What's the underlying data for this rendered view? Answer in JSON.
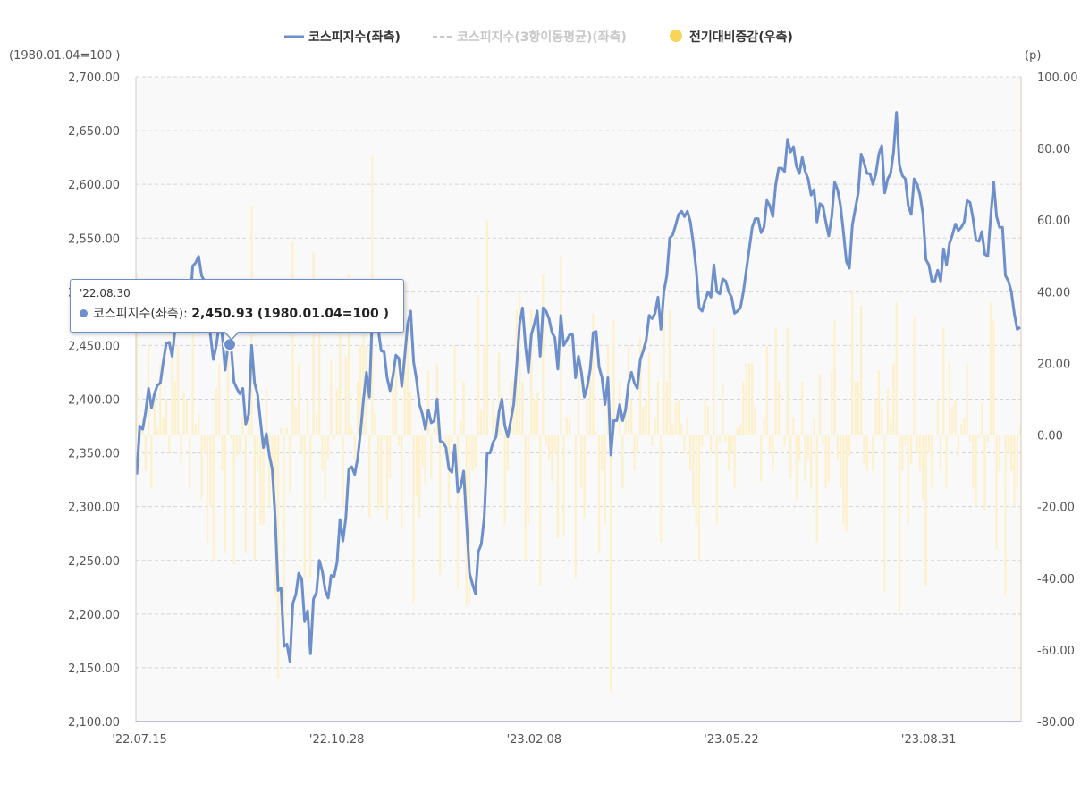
{
  "chart_data": {
    "type": "line",
    "left_unit": "(1980.01.04=100 )",
    "right_unit": "(p)",
    "legend": [
      {
        "name": "코스피지수(좌측)",
        "color": "#6d8fcc",
        "style": "line"
      },
      {
        "name": "코스피지수(3항이동평균)(좌측)",
        "color": "#c8c8c8",
        "style": "dashed"
      },
      {
        "name": "전기대비증감(우측)",
        "color": "#f8d45a",
        "style": "circle"
      }
    ],
    "left_axis": {
      "min": 2100,
      "max": 2700,
      "ticks": [
        "2,100.00",
        "2,150.00",
        "2,200.00",
        "2,250.00",
        "2,300.00",
        "2,350.00",
        "2,400.00",
        "2,450.00",
        "2,500.00",
        "2,550.00",
        "2,600.00",
        "2,650.00",
        "2,700.00"
      ]
    },
    "right_axis": {
      "min": -80,
      "max": 100,
      "ticks": [
        "-80.00",
        "-60.00",
        "-40.00",
        "-20.00",
        "0.00",
        "20.00",
        "40.00",
        "60.00",
        "80.00",
        "100.00"
      ]
    },
    "x_ticks": [
      "'22.07.15",
      "'22.10.28",
      "'23.02.08",
      "'23.05.22",
      "'23.08.31"
    ],
    "grid": true,
    "legend_position": "top-center",
    "series": [
      {
        "name": "코스피지수(좌측)",
        "axis": "left",
        "values": [
          2330,
          2375,
          2372,
          2388,
          2410,
          2392,
          2405,
          2413,
          2415,
          2435,
          2452,
          2453,
          2440,
          2465,
          2480,
          2492,
          2490,
          2500,
          2485,
          2524,
          2527,
          2533,
          2515,
          2510,
          2480,
          2460,
          2437,
          2450,
          2470,
          2460,
          2427,
          2451,
          2450,
          2416,
          2410,
          2405,
          2410,
          2377,
          2386,
          2450,
          2415,
          2405,
          2380,
          2355,
          2368,
          2348,
          2335,
          2290,
          2222,
          2224,
          2170,
          2172,
          2156,
          2210,
          2218,
          2238,
          2233,
          2193,
          2203,
          2163,
          2214,
          2220,
          2250,
          2240,
          2222,
          2215,
          2236,
          2235,
          2248,
          2288,
          2268,
          2290,
          2335,
          2337,
          2330,
          2345,
          2370,
          2400,
          2425,
          2402,
          2480,
          2486,
          2465,
          2445,
          2444,
          2420,
          2408,
          2422,
          2441,
          2438,
          2412,
          2440,
          2470,
          2482,
          2435,
          2418,
          2395,
          2386,
          2372,
          2390,
          2378,
          2380,
          2400,
          2361,
          2360,
          2355,
          2335,
          2332,
          2357,
          2314,
          2318,
          2333,
          2285,
          2238,
          2228,
          2219,
          2258,
          2265,
          2290,
          2350,
          2350,
          2360,
          2365,
          2388,
          2400,
          2375,
          2365,
          2380,
          2395,
          2430,
          2470,
          2485,
          2450,
          2425,
          2460,
          2470,
          2482,
          2440,
          2485,
          2482,
          2475,
          2462,
          2457,
          2428,
          2478,
          2450,
          2455,
          2460,
          2460,
          2420,
          2440,
          2425,
          2402,
          2412,
          2428,
          2462,
          2463,
          2430,
          2420,
          2395,
          2420,
          2348,
          2380,
          2380,
          2395,
          2380,
          2390,
          2415,
          2425,
          2415,
          2410,
          2437,
          2445,
          2455,
          2478,
          2475,
          2480,
          2495,
          2465,
          2500,
          2515,
          2550,
          2553,
          2562,
          2572,
          2575,
          2570,
          2575,
          2565,
          2545,
          2520,
          2485,
          2482,
          2492,
          2500,
          2495,
          2525,
          2500,
          2498,
          2512,
          2510,
          2500,
          2495,
          2480,
          2482,
          2485,
          2500,
          2520,
          2540,
          2560,
          2568,
          2568,
          2555,
          2560,
          2585,
          2580,
          2570,
          2600,
          2615,
          2615,
          2612,
          2642,
          2630,
          2635,
          2617,
          2610,
          2625,
          2612,
          2605,
          2590,
          2595,
          2565,
          2582,
          2580,
          2565,
          2552,
          2570,
          2602,
          2595,
          2580,
          2555,
          2528,
          2522,
          2562,
          2577,
          2592,
          2628,
          2620,
          2610,
          2610,
          2600,
          2610,
          2628,
          2636,
          2592,
          2605,
          2610,
          2630,
          2667,
          2618,
          2608,
          2605,
          2580,
          2572,
          2605,
          2600,
          2590,
          2572,
          2530,
          2525,
          2510,
          2510,
          2520,
          2510,
          2540,
          2525,
          2545,
          2553,
          2563,
          2557,
          2560,
          2565,
          2585,
          2583,
          2568,
          2548,
          2547,
          2556,
          2535,
          2533,
          2570,
          2602,
          2570,
          2560,
          2560,
          2515,
          2510,
          2500,
          2480,
          2465,
          2467
        ]
      },
      {
        "name": "전기대비증감(우측)",
        "axis": "right",
        "values": [
          45,
          -8,
          5,
          -10,
          25,
          -15,
          12,
          2,
          20,
          5,
          10,
          -5,
          30,
          15,
          25,
          -8,
          12,
          10,
          -15,
          40,
          3,
          6,
          -18,
          -5,
          -30,
          -20,
          -35,
          13,
          20,
          -10,
          -33,
          25,
          -1,
          -36,
          -6,
          -5,
          5,
          -33,
          9,
          64,
          -35,
          -10,
          -25,
          -25,
          13,
          -20,
          -13,
          -45,
          -68,
          2,
          -55,
          2,
          -16,
          54,
          8,
          20,
          -5,
          -40,
          10,
          -40,
          51,
          6,
          30,
          -10,
          -18,
          -7,
          21,
          -1,
          13,
          40,
          -20,
          22,
          45,
          2,
          -7,
          15,
          25,
          30,
          25,
          -23,
          78,
          6,
          -21,
          -20,
          -1,
          -24,
          -12,
          14,
          19,
          -3,
          -26,
          28,
          30,
          12,
          -47,
          -17,
          -23,
          -9,
          -14,
          18,
          -12,
          2,
          20,
          -39,
          -1,
          -5,
          -20,
          -3,
          25,
          -43,
          4,
          15,
          -48,
          -47,
          -10,
          -9,
          39,
          7,
          25,
          60,
          0,
          10,
          5,
          23,
          12,
          -25,
          -10,
          15,
          15,
          35,
          40,
          15,
          -35,
          -25,
          35,
          10,
          12,
          -42,
          45,
          -3,
          -7,
          -13,
          -5,
          -29,
          50,
          -28,
          5,
          5,
          0,
          -40,
          20,
          -15,
          -23,
          10,
          16,
          34,
          1,
          -33,
          -10,
          -25,
          25,
          -72,
          32,
          0,
          15,
          -15,
          10,
          25,
          10,
          -10,
          -5,
          27,
          8,
          10,
          23,
          -3,
          5,
          15,
          -30,
          35,
          15,
          35,
          3,
          9,
          10,
          3,
          -5,
          5,
          -10,
          -20,
          -25,
          -35,
          -3,
          10,
          8,
          -5,
          30,
          -25,
          -2,
          14,
          -2,
          -10,
          -5,
          -15,
          2,
          3,
          15,
          20,
          20,
          20,
          8,
          0,
          -13,
          5,
          25,
          -5,
          -10,
          30,
          15,
          0,
          -3,
          30,
          -12,
          5,
          -18,
          -7,
          15,
          -13,
          -7,
          -15,
          5,
          -30,
          17,
          -2,
          -15,
          -13,
          18,
          32,
          -7,
          -15,
          -25,
          -27,
          -6,
          40,
          15,
          15,
          36,
          -8,
          -10,
          0,
          -10,
          10,
          18,
          8,
          -44,
          13,
          5,
          20,
          37,
          -49,
          -10,
          -3,
          -25,
          -8,
          33,
          -5,
          -10,
          -18,
          -42,
          -5,
          -15,
          0,
          10,
          -10,
          30,
          -15,
          20,
          8,
          10,
          -6,
          3,
          5,
          20,
          -2,
          -15,
          -20,
          -1,
          9,
          -21,
          -2,
          37,
          32,
          -32,
          -10,
          0,
          -45,
          -5,
          -10,
          -20,
          -15,
          2
        ]
      }
    ],
    "tooltip": {
      "date": "'22.08.30",
      "series_label": "코스피지수(좌측):",
      "value": "2,450.93",
      "unit": "(1980.01.04=100 )"
    }
  }
}
